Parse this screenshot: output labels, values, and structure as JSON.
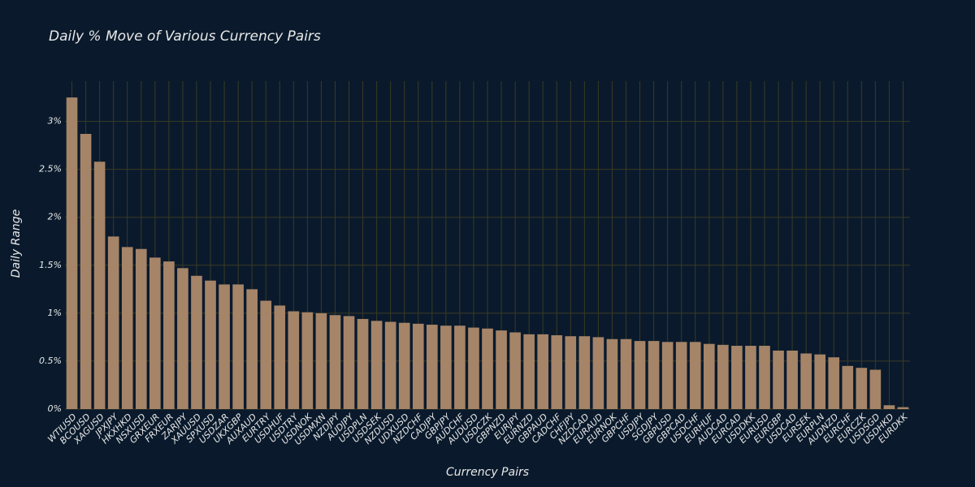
{
  "chart_data": {
    "type": "bar",
    "title": "Daily % Move of Various Currency Pairs",
    "x_label": "Currency Pairs",
    "y_label": "Daily Range",
    "categories": [
      "WTIUSD",
      "BCOUSD",
      "XAGUSD",
      "JPXJPY",
      "HKXHKD",
      "NSXUSD",
      "GRXEUR",
      "FRXEUR",
      "ZARJPY",
      "XAUUSD",
      "SPXUSD",
      "USDZAR",
      "UKXGBP",
      "AUXAUD",
      "EURTRY",
      "USDHUF",
      "USDTRY",
      "USDNOK",
      "USDMXN",
      "NZDJPY",
      "AUDJPY",
      "USDPLN",
      "USDSEK",
      "NZDUSD",
      "UDXUSD",
      "NZDCHF",
      "CADJPY",
      "GBPJPY",
      "AUDCHF",
      "AUDUSD",
      "USDCZK",
      "GBPNZD",
      "EURJPY",
      "EURNZD",
      "GBPAUD",
      "CADCHF",
      "CHFJPY",
      "NZDCAD",
      "EURAUD",
      "EURNOK",
      "GBPCHF",
      "USDJPY",
      "SGDJPY",
      "GBPUSD",
      "GBPCAD",
      "USDCHF",
      "EURHUF",
      "AUDCAD",
      "EURCAD",
      "USDDKK",
      "EURUSD",
      "EURGBP",
      "USDCAD",
      "EURSEK",
      "EURPLN",
      "AUDNZD",
      "EURCHF",
      "EURCZK",
      "USDSGD",
      "USDHKD",
      "EURDKK"
    ],
    "values": [
      3.25,
      2.87,
      2.58,
      1.8,
      1.69,
      1.67,
      1.58,
      1.54,
      1.47,
      1.39,
      1.34,
      1.3,
      1.3,
      1.25,
      1.13,
      1.08,
      1.02,
      1.01,
      1.0,
      0.98,
      0.97,
      0.94,
      0.92,
      0.91,
      0.9,
      0.89,
      0.88,
      0.87,
      0.87,
      0.85,
      0.84,
      0.82,
      0.8,
      0.78,
      0.78,
      0.77,
      0.76,
      0.76,
      0.75,
      0.73,
      0.73,
      0.71,
      0.71,
      0.7,
      0.7,
      0.7,
      0.68,
      0.67,
      0.66,
      0.66,
      0.66,
      0.61,
      0.61,
      0.58,
      0.57,
      0.54,
      0.45,
      0.43,
      0.41,
      0.04,
      0.02
    ],
    "color": "#a58468",
    "ylim": [
      0,
      3.42
    ],
    "yticks": [
      {
        "value": 0,
        "label": "0%"
      },
      {
        "value": 0.5,
        "label": "0.5%"
      },
      {
        "value": 1,
        "label": "1%"
      },
      {
        "value": 1.5,
        "label": "1.5%"
      },
      {
        "value": 2,
        "label": "2%"
      },
      {
        "value": 2.5,
        "label": "2.5%"
      },
      {
        "value": 3,
        "label": "3%"
      }
    ],
    "grid": true
  }
}
